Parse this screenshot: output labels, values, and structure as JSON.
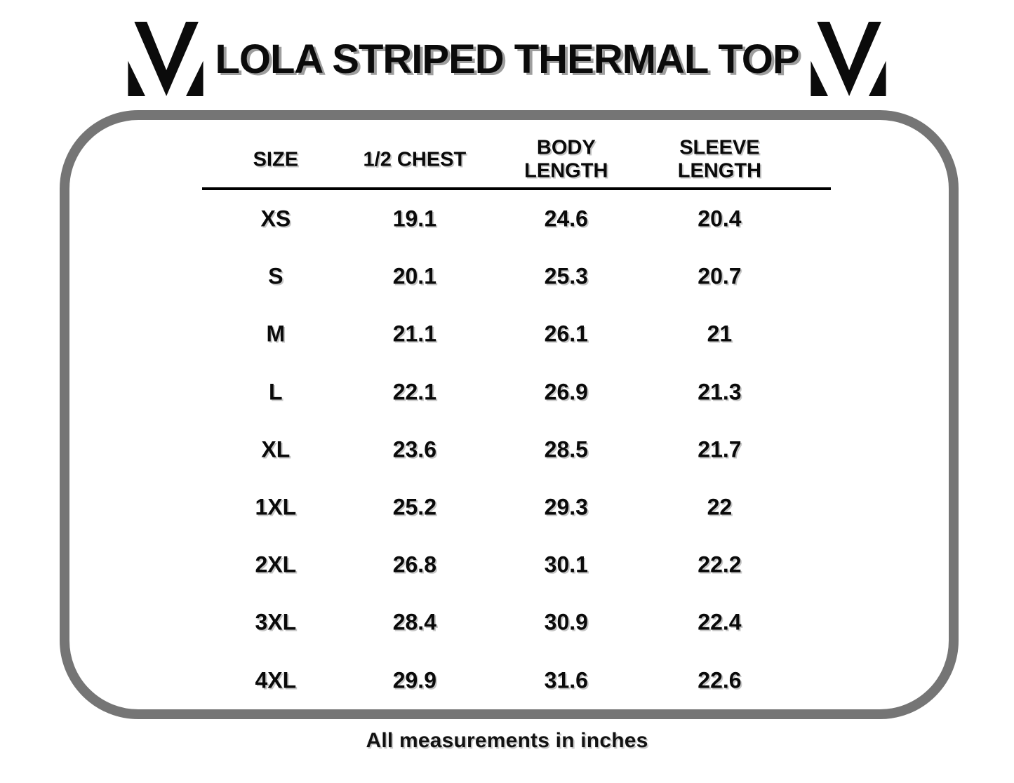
{
  "colors": {
    "text_black": "#0b0b0b",
    "frame_gray": "#757575",
    "title_shadow_gray": "#9e9e9e"
  },
  "brand": {
    "logo_icon": "m-monogram"
  },
  "chart_data": {
    "type": "table",
    "title": "LOLA STRIPED THERMAL TOP",
    "units": "inches",
    "footnote": "All measurements in inches",
    "columns": [
      "SIZE",
      "1/2 CHEST",
      "BODY LENGTH",
      "SLEEVE LENGTH"
    ],
    "columns_display": [
      [
        "SIZE"
      ],
      [
        "1/2 CHEST"
      ],
      [
        "BODY",
        "LENGTH"
      ],
      [
        "SLEEVE",
        "LENGTH"
      ]
    ],
    "rows": [
      [
        "XS",
        "19.1",
        "24.6",
        "20.4"
      ],
      [
        "S",
        "20.1",
        "25.3",
        "20.7"
      ],
      [
        "M",
        "21.1",
        "26.1",
        "21"
      ],
      [
        "L",
        "22.1",
        "26.9",
        "21.3"
      ],
      [
        "XL",
        "23.6",
        "28.5",
        "21.7"
      ],
      [
        "1XL",
        "25.2",
        "29.3",
        "22"
      ],
      [
        "2XL",
        "26.8",
        "30.1",
        "22.2"
      ],
      [
        "3XL",
        "28.4",
        "30.9",
        "22.4"
      ],
      [
        "4XL",
        "29.9",
        "31.6",
        "22.6"
      ]
    ]
  }
}
